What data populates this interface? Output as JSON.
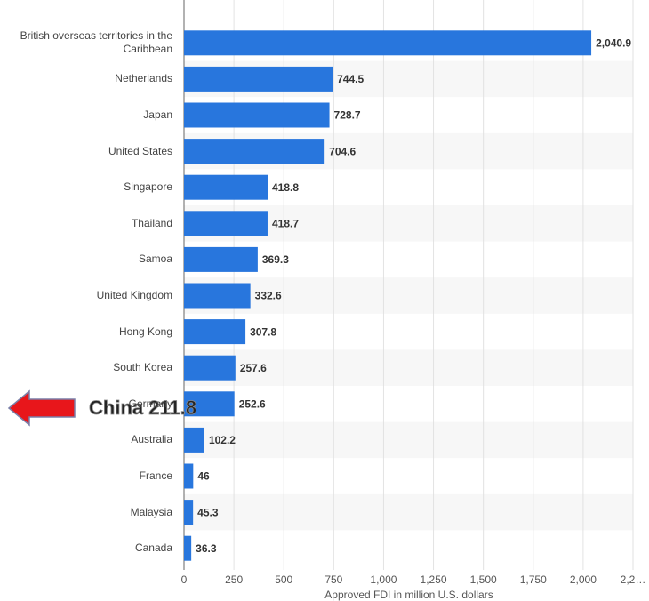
{
  "chart_data": {
    "type": "bar",
    "orientation": "horizontal",
    "categories": [
      "British overseas territories in the Caribbean",
      "Netherlands",
      "Japan",
      "United States",
      "Singapore",
      "Thailand",
      "Samoa",
      "United Kingdom",
      "Hong Kong",
      "South Korea",
      "Germany",
      "Australia",
      "France",
      "Malaysia",
      "Canada"
    ],
    "values": [
      2040.9,
      744.5,
      728.7,
      704.6,
      418.8,
      418.7,
      369.3,
      332.6,
      307.8,
      257.6,
      252.6,
      102.2,
      46,
      45.3,
      36.3
    ],
    "value_labels": [
      "2,040.9",
      "744.5",
      "728.7",
      "704.6",
      "418.8",
      "418.7",
      "369.3",
      "332.6",
      "307.8",
      "257.6",
      "252.6",
      "102.2",
      "46",
      "45.3",
      "36.3"
    ],
    "color": "#2876dd",
    "xlabel": "Approved FDI in million U.S. dollars",
    "xlim": [
      0,
      2250
    ],
    "xticks": [
      0,
      250,
      500,
      750,
      {
        "value": 1000,
        "label": "1,000"
      },
      {
        "value": 1250,
        "label": "1,250"
      },
      {
        "value": 1500,
        "label": "1,500"
      },
      {
        "value": 1750,
        "label": "1,750"
      },
      {
        "value": 2000,
        "label": "2,000"
      },
      {
        "value": 2250,
        "label": "2,2…"
      }
    ],
    "grid": true,
    "annotation": "China 211.8"
  }
}
